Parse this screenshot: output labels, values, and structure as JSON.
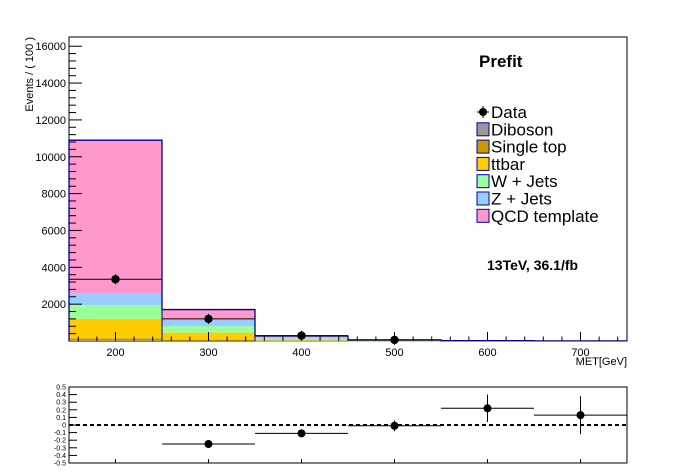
{
  "chart_data": [
    {
      "type": "bar",
      "stacked": true,
      "title": "Prefit",
      "annotation": "13TeV, 36.1/fb",
      "xlabel": "MET[GeV]",
      "ylabel": "Events / ( 100 )",
      "xlim": [
        150,
        750
      ],
      "ylim": [
        0,
        16500
      ],
      "x_tick_labels": [
        "200",
        "300",
        "400",
        "500",
        "600",
        "700"
      ],
      "y_tick_labels": [
        "2000",
        "4000",
        "6000",
        "8000",
        "10000",
        "12000",
        "14000",
        "16000"
      ],
      "bin_edges": [
        150,
        250,
        350,
        450,
        550,
        650,
        750
      ],
      "legend_position": "right",
      "legend": [
        "Data",
        "Diboson",
        "Single top",
        "ttbar",
        "W + Jets",
        "Z + Jets",
        "QCD template"
      ],
      "series": [
        {
          "name": "Diboson",
          "color": "#999999",
          "values": [
            30,
            15,
            5,
            2,
            1,
            0.5
          ]
        },
        {
          "name": "Single top",
          "color": "#cc9900",
          "values": [
            120,
            40,
            8,
            2,
            1,
            0.5
          ]
        },
        {
          "name": "ttbar",
          "color": "#ffcc00",
          "values": [
            1050,
            400,
            30,
            8,
            3,
            1
          ]
        },
        {
          "name": "W + Jets",
          "color": "#99ff99",
          "values": [
            750,
            350,
            90,
            20,
            6,
            2
          ]
        },
        {
          "name": "Z + Jets",
          "color": "#99ccff",
          "values": [
            650,
            350,
            70,
            15,
            4,
            1.5
          ]
        },
        {
          "name": "QCD template",
          "color": "#ff99cc",
          "values": [
            8300,
            550,
            70,
            10,
            3,
            1
          ]
        }
      ],
      "data": {
        "name": "Data",
        "x": [
          200,
          300,
          400,
          500
        ],
        "y": [
          3350,
          1200,
          290,
          60
        ]
      },
      "total_line_color": "#000099"
    },
    {
      "type": "scatter",
      "ylim": [
        -0.5,
        0.5
      ],
      "xlim": [
        150,
        750
      ],
      "y_tick_labels": [
        "0.5",
        "0.4",
        "0.3",
        "0.2",
        "0.1",
        "0",
        "-0.1",
        "-0.2",
        "-0.3",
        "-0.4",
        "-0.5"
      ],
      "reference_line": 0,
      "points": [
        {
          "x": 300,
          "xerr": 50,
          "y": -0.25,
          "yerr": 0.03
        },
        {
          "x": 400,
          "xerr": 50,
          "y": -0.11,
          "yerr": 0.05
        },
        {
          "x": 500,
          "xerr": 50,
          "y": -0.01,
          "yerr": 0.07
        },
        {
          "x": 600,
          "xerr": 50,
          "y": 0.22,
          "yerr": 0.18
        },
        {
          "x": 700,
          "xerr": 50,
          "y": 0.13,
          "yerr": 0.25
        }
      ]
    }
  ]
}
